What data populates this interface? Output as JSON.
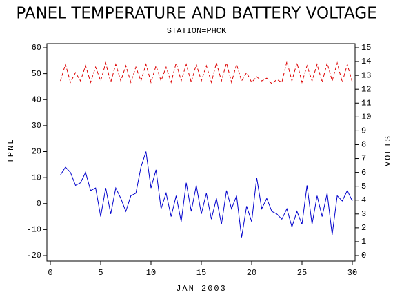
{
  "chart_data": {
    "type": "line",
    "title": "PANEL TEMPERATURE AND BATTERY VOLTAGE",
    "subtitle": "STATION=PHCK",
    "x_label": "JAN 2003",
    "y_label": "TPNL",
    "y2_label": "VOLTS",
    "x": [
      1,
      1.5,
      2,
      2.5,
      3,
      3.5,
      4,
      4.5,
      5,
      5.5,
      6,
      6.5,
      7,
      7.5,
      8,
      8.5,
      9,
      9.5,
      10,
      10.5,
      11,
      11.5,
      12,
      12.5,
      13,
      13.5,
      14,
      14.5,
      15,
      15.5,
      16,
      16.5,
      17,
      17.5,
      18,
      18.5,
      19,
      19.5,
      20,
      20.5,
      21,
      21.5,
      22,
      22.5,
      23,
      23.5,
      24,
      24.5,
      25,
      25.5,
      26,
      26.5,
      27,
      27.5,
      28,
      28.5,
      29,
      29.5,
      30
    ],
    "series": [
      {
        "color": "#0000cc",
        "axis": "y",
        "line_style": "solid",
        "values": [
          11,
          14,
          12,
          7,
          8,
          12,
          5,
          6,
          -5,
          6,
          -4,
          6,
          2,
          -3,
          3,
          4,
          14,
          20,
          6,
          13,
          -2,
          4,
          -5,
          3,
          -7,
          8,
          -3,
          7,
          -4,
          4,
          -6,
          2,
          -8,
          5,
          -2,
          3,
          -13,
          -1,
          -7,
          10,
          -2,
          2,
          -3,
          -4,
          -6,
          -2,
          -9,
          -3,
          -8,
          7,
          -8,
          3,
          -5,
          4,
          -12,
          3,
          1,
          5,
          1
        ]
      },
      {
        "color": "#dd0000",
        "axis": "y2",
        "line_style": "dashed",
        "values": [
          12.6,
          13.8,
          12.5,
          13.2,
          12.6,
          13.7,
          12.5,
          13.6,
          12.6,
          13.9,
          12.5,
          13.8,
          12.6,
          13.7,
          12.5,
          13.6,
          12.6,
          13.8,
          12.5,
          13.7,
          12.6,
          13.6,
          12.5,
          13.9,
          12.6,
          13.8,
          12.5,
          13.8,
          12.6,
          13.7,
          12.5,
          13.9,
          12.6,
          13.9,
          12.5,
          13.8,
          12.6,
          13.2,
          12.5,
          12.9,
          12.6,
          12.8,
          12.4,
          12.7,
          12.5,
          14.0,
          12.6,
          13.9,
          12.5,
          13.7,
          12.6,
          13.8,
          12.5,
          13.9,
          12.6,
          13.9,
          12.5,
          13.8,
          12.5
        ]
      }
    ],
    "xlim": [
      0,
      30
    ],
    "xticks": [
      0,
      5,
      10,
      15,
      20,
      25,
      30
    ],
    "ylim": [
      -20,
      60
    ],
    "yticks": [
      -20,
      -10,
      0,
      10,
      20,
      30,
      40,
      50,
      60
    ],
    "y2lim": [
      0,
      15
    ],
    "y2ticks": [
      0,
      1,
      2,
      3,
      4,
      5,
      6,
      7,
      8,
      9,
      10,
      11,
      12,
      13,
      14,
      15
    ]
  }
}
